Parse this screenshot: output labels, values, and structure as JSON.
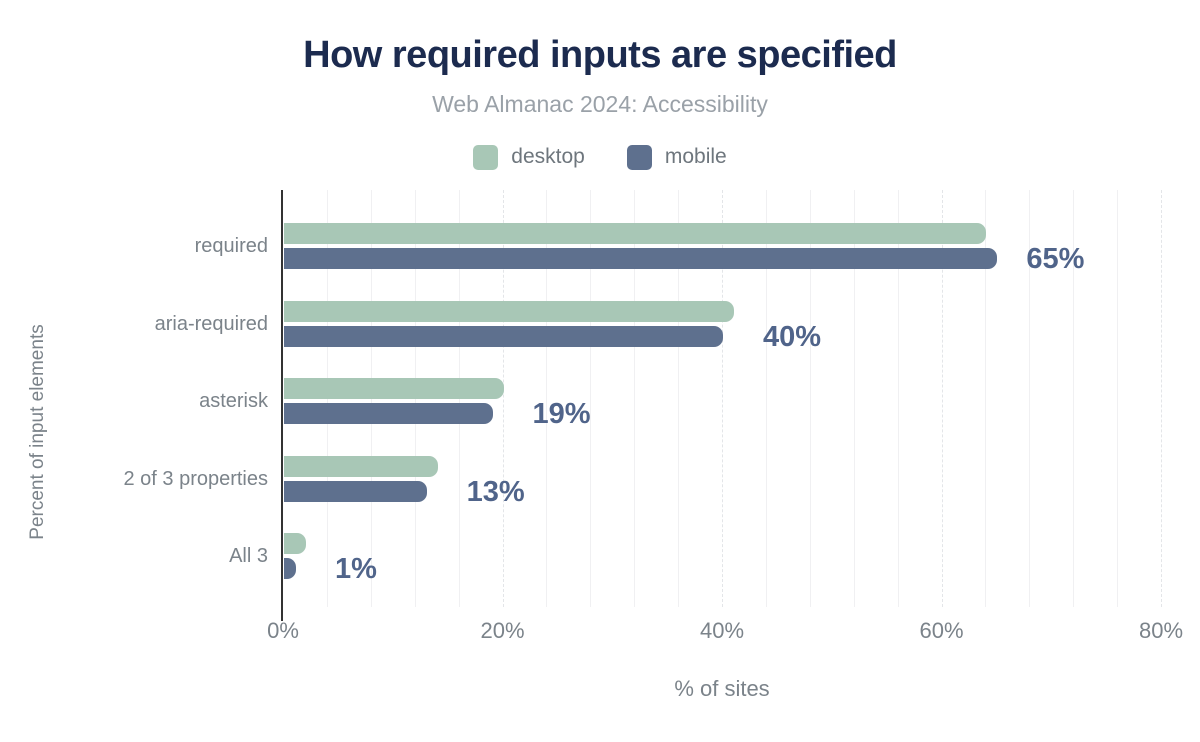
{
  "header": {
    "title": "How required inputs are specified",
    "subtitle": "Web Almanac 2024: Accessibility"
  },
  "x_axis": {
    "label": "% of sites",
    "ticks": [
      "0%",
      "20%",
      "40%",
      "60%",
      "80%"
    ]
  },
  "y_axis": {
    "label": "Percent of input elements"
  },
  "chart_data": {
    "type": "bar",
    "orientation": "horizontal",
    "title": "How required inputs are specified",
    "subtitle": "Web Almanac 2024: Accessibility",
    "categories": [
      "required",
      "aria-required",
      "asterisk",
      "2 of 3 properties",
      "All 3"
    ],
    "series": [
      {
        "name": "desktop",
        "color": "#a8c7b6",
        "values": [
          64,
          41,
          20,
          14,
          2
        ]
      },
      {
        "name": "mobile",
        "color": "#5e708e",
        "values": [
          65,
          40,
          19,
          13,
          1
        ]
      }
    ],
    "data_labels": [
      "65%",
      "40%",
      "19%",
      "13%",
      "1%"
    ],
    "xlabel": "% of sites",
    "ylabel": "Percent of input elements",
    "xlim": [
      0,
      80
    ],
    "x_ticks": [
      "0%",
      "20%",
      "40%",
      "60%",
      "80%"
    ],
    "grid": "vertical-minor-every-4pct-major-dashed-every-20pct",
    "legend_position": "top"
  },
  "colors": {
    "title": "#1c2b4f",
    "subtitle": "#9aa1a8",
    "axis_text": "#7b838a",
    "data_label": "#50648a",
    "axis_line": "#333333",
    "grid_minor": "#f0f0f2",
    "grid_major": "#e3e5e8",
    "background": "#ffffff",
    "desktop": "#a8c7b6",
    "mobile": "#5e708e"
  }
}
